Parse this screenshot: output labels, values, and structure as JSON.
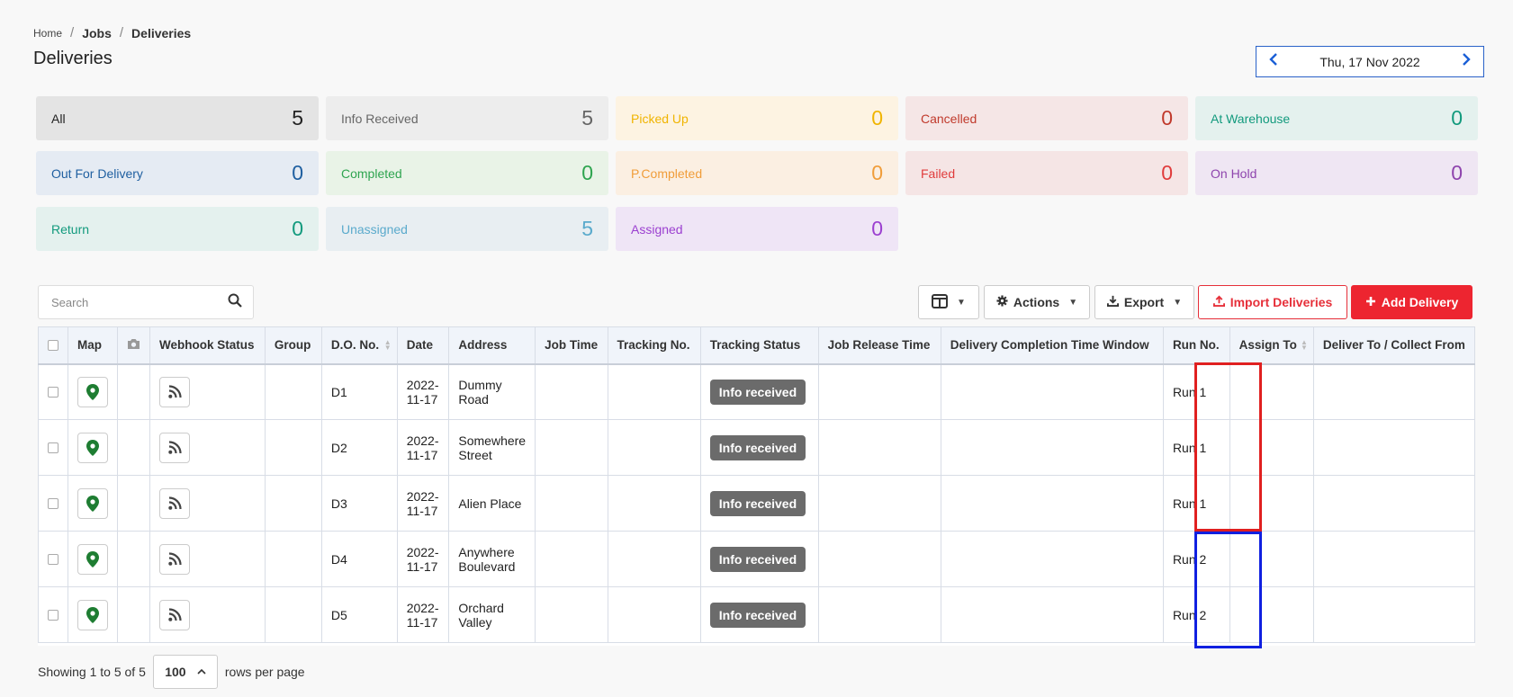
{
  "breadcrumb": {
    "home": "Home",
    "jobs": "Jobs",
    "current": "Deliveries",
    "separator": "/"
  },
  "page_title": "Deliveries",
  "date_nav": {
    "date": "Thu, 17 Nov 2022",
    "prev_icon": "chevron-left-icon",
    "next_icon": "chevron-right-icon"
  },
  "status_cards": [
    {
      "label": "All",
      "count": "5",
      "bg": "#e4e4e4",
      "fg": "#222222"
    },
    {
      "label": "Info Received",
      "count": "5",
      "bg": "#ededed",
      "fg": "#666666"
    },
    {
      "label": "Picked Up",
      "count": "0",
      "bg": "#fdf3e2",
      "fg": "#f0b400"
    },
    {
      "label": "Cancelled",
      "count": "0",
      "bg": "#f5e6e6",
      "fg": "#c0392b"
    },
    {
      "label": "At Warehouse",
      "count": "0",
      "bg": "#e4f1ee",
      "fg": "#129a7d"
    },
    {
      "label": "Out For Delivery",
      "count": "0",
      "bg": "#e5ebf3",
      "fg": "#1f5fa0"
    },
    {
      "label": "Completed",
      "count": "0",
      "bg": "#e9f3e7",
      "fg": "#2ea44f"
    },
    {
      "label": "P.Completed",
      "count": "0",
      "bg": "#fbefe2",
      "fg": "#f09d3a"
    },
    {
      "label": "Failed",
      "count": "0",
      "bg": "#f5e5e5",
      "fg": "#e03c3c"
    },
    {
      "label": "On Hold",
      "count": "0",
      "bg": "#efe6f3",
      "fg": "#8e44ad"
    },
    {
      "label": "Return",
      "count": "0",
      "bg": "#e4f1ee",
      "fg": "#129a7d"
    },
    {
      "label": "Unassigned",
      "count": "5",
      "bg": "#e8eef2",
      "fg": "#5aaacc"
    },
    {
      "label": "Assigned",
      "count": "0",
      "bg": "#efe5f6",
      "fg": "#9b3fd0"
    }
  ],
  "toolbar": {
    "search_placeholder": "Search",
    "actions_label": "Actions",
    "export_label": "Export",
    "import_label": "Import Deliveries",
    "add_label": "Add Delivery"
  },
  "table": {
    "columns": [
      "",
      "Map",
      "",
      "Webhook Status",
      "Group",
      "D.O. No.",
      "Date",
      "Address",
      "Job Time",
      "Tracking No.",
      "Tracking Status",
      "Job Release Time",
      "Delivery Completion Time Window",
      "Run No.",
      "Assign To",
      "Deliver To / Collect From"
    ],
    "rows": [
      {
        "do_no": "D1",
        "date": "2022-11-17",
        "address": "Dummy Road",
        "tracking_status": "Info received",
        "run_no": "Run 1"
      },
      {
        "do_no": "D2",
        "date": "2022-11-17",
        "address": "Somewhere Street",
        "tracking_status": "Info received",
        "run_no": "Run 1"
      },
      {
        "do_no": "D3",
        "date": "2022-11-17",
        "address": "Alien Place",
        "tracking_status": "Info received",
        "run_no": "Run 1"
      },
      {
        "do_no": "D4",
        "date": "2022-11-17",
        "address": "Anywhere Boulevard",
        "tracking_status": "Info received",
        "run_no": "Run 2"
      },
      {
        "do_no": "D5",
        "date": "2022-11-17",
        "address": "Orchard Valley",
        "tracking_status": "Info received",
        "run_no": "Run 2"
      }
    ]
  },
  "footer": {
    "showing": "Showing 1 to 5 of 5",
    "rows_per_page_value": "100",
    "rows_per_page_label": "rows per page"
  },
  "colors": {
    "highlight_run_1": "#e02020",
    "highlight_run_2": "#1020e0",
    "map_pin": "#1e7d32",
    "badge": "#6b6b6b"
  }
}
